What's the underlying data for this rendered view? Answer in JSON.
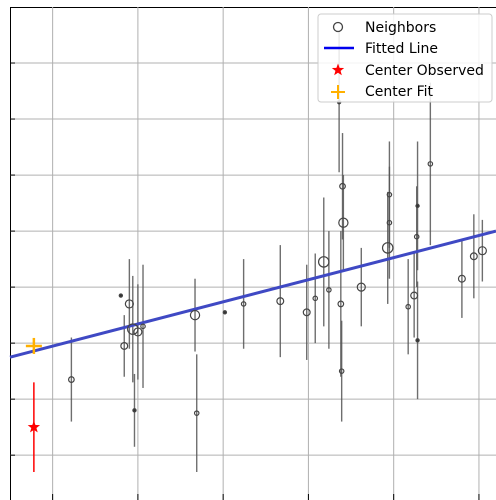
{
  "chart_data": {
    "type": "scatter",
    "title": "",
    "xlabel": "",
    "ylabel": "",
    "xlim": [
      0,
      5.7
    ],
    "ylim": [
      0,
      8.8
    ],
    "grid": true,
    "legend_position": "top-right",
    "series": [
      {
        "name": "Neighbors",
        "marker": "open-circle",
        "color": "#444444",
        "points": [
          {
            "x": 0.72,
            "y": 2.15,
            "err": 0.75,
            "size": 3
          },
          {
            "x": 1.3,
            "y": 3.65,
            "err": 0.0,
            "size": 1
          },
          {
            "x": 1.34,
            "y": 2.75,
            "err": 0.55,
            "size": 4
          },
          {
            "x": 1.4,
            "y": 3.5,
            "err": 0.8,
            "size": 5
          },
          {
            "x": 1.44,
            "y": 3.05,
            "err": 0.95,
            "size": 7
          },
          {
            "x": 1.46,
            "y": 1.6,
            "err": 0.65,
            "size": 1
          },
          {
            "x": 1.5,
            "y": 3.0,
            "err": 0.85,
            "size": 5
          },
          {
            "x": 1.56,
            "y": 3.1,
            "err": 1.1,
            "size": 2
          },
          {
            "x": 2.17,
            "y": 3.3,
            "err": 0.65,
            "size": 6
          },
          {
            "x": 2.19,
            "y": 1.55,
            "err": 1.05,
            "size": 2
          },
          {
            "x": 2.52,
            "y": 3.35,
            "err": 0.0,
            "size": 1
          },
          {
            "x": 2.74,
            "y": 3.5,
            "err": 0.8,
            "size": 2
          },
          {
            "x": 3.17,
            "y": 3.55,
            "err": 1.0,
            "size": 4
          },
          {
            "x": 3.48,
            "y": 3.35,
            "err": 0.85,
            "size": 4
          },
          {
            "x": 3.58,
            "y": 3.6,
            "err": 0.8,
            "size": 2
          },
          {
            "x": 3.68,
            "y": 4.25,
            "err": 1.15,
            "size": 7
          },
          {
            "x": 3.74,
            "y": 3.75,
            "err": 1.05,
            "size": 2
          },
          {
            "x": 3.86,
            "y": 7.1,
            "err": 1.25,
            "size": 1
          },
          {
            "x": 3.88,
            "y": 3.5,
            "err": 1.3,
            "size": 3
          },
          {
            "x": 3.89,
            "y": 2.3,
            "err": 0.9,
            "size": 2
          },
          {
            "x": 3.9,
            "y": 5.6,
            "err": 0.95,
            "size": 3
          },
          {
            "x": 3.91,
            "y": 4.95,
            "err": 0.85,
            "size": 6
          },
          {
            "x": 4.12,
            "y": 3.8,
            "err": 0.7,
            "size": 5
          },
          {
            "x": 4.43,
            "y": 4.5,
            "err": 1.0,
            "size": 7
          },
          {
            "x": 4.45,
            "y": 5.45,
            "err": 0.95,
            "size": 2
          },
          {
            "x": 4.45,
            "y": 4.95,
            "err": 1.0,
            "size": 2
          },
          {
            "x": 4.67,
            "y": 3.45,
            "err": 0.85,
            "size": 2
          },
          {
            "x": 4.74,
            "y": 3.65,
            "err": 0.75,
            "size": 4
          },
          {
            "x": 4.77,
            "y": 4.7,
            "err": 0.9,
            "size": 2
          },
          {
            "x": 4.78,
            "y": 5.25,
            "err": 1.15,
            "size": 1
          },
          {
            "x": 4.78,
            "y": 2.85,
            "err": 1.05,
            "size": 1
          },
          {
            "x": 4.93,
            "y": 6.0,
            "err": 1.45,
            "size": 2
          },
          {
            "x": 5.3,
            "y": 3.95,
            "err": 0.7,
            "size": 4
          },
          {
            "x": 5.44,
            "y": 4.35,
            "err": 0.75,
            "size": 4
          },
          {
            "x": 5.54,
            "y": 4.45,
            "err": 0.55,
            "size": 5
          }
        ]
      },
      {
        "name": "Fitted Line",
        "color": "#3f49c4",
        "x": [
          0,
          5.7
        ],
        "y": [
          2.55,
          4.8
        ]
      },
      {
        "name": "Center Observed",
        "marker": "star",
        "color": "#ff0000",
        "points": [
          {
            "x": 0.28,
            "y": 1.3,
            "err": 0.8
          }
        ]
      },
      {
        "name": "Center Fit",
        "marker": "plus",
        "color": "#ffb000",
        "points": [
          {
            "x": 0.28,
            "y": 2.75
          }
        ]
      }
    ],
    "legend": [
      "Neighbors",
      "Fitted Line",
      "Center Observed",
      "Center Fit"
    ]
  }
}
